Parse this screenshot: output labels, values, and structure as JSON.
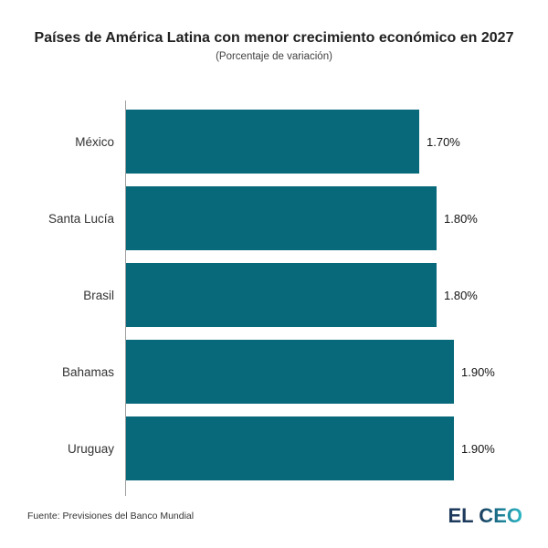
{
  "header": {
    "title": "Países de América Latina con menor crecimiento económico en 2027",
    "subtitle": "(Porcentaje de variación)"
  },
  "footer": {
    "source": "Fuente: Previsiones del Banco Mundial",
    "logo": "EL CEO"
  },
  "colors": {
    "bar": "#07697a",
    "axis": "#9e9e9e",
    "title_text": "#212121",
    "label_text": "#333333",
    "value_text": "#141414",
    "logo_gradient_start": "#1d3a5c",
    "logo_gradient_end": "#2fb9c6"
  },
  "chart_data": {
    "type": "bar",
    "orientation": "horizontal",
    "title": "Países de América Latina con menor crecimiento económico en 2027",
    "subtitle": "(Porcentaje de variación)",
    "categories": [
      "México",
      "Santa Lucía",
      "Brasil",
      "Bahamas",
      "Uruguay"
    ],
    "values": [
      1.7,
      1.8,
      1.8,
      1.9,
      1.9
    ],
    "value_labels": [
      "1.70%",
      "1.80%",
      "1.80%",
      "1.90%",
      "1.90%"
    ],
    "xlabel": "",
    "ylabel": "",
    "xlim": [
      0,
      2.0
    ],
    "grid": false,
    "legend": false,
    "bar_color": "#07697a",
    "source": "Fuente: Previsiones del Banco Mundial"
  }
}
